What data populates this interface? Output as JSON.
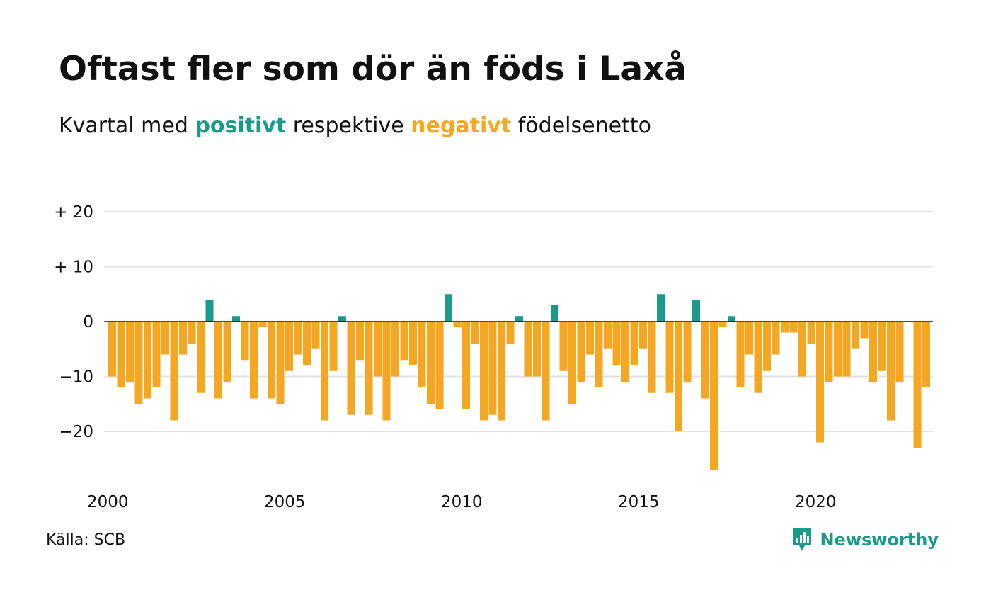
{
  "header": {
    "title": "Oftast fler som dör än föds i Laxå",
    "subtitle_prefix": "Kvartal med",
    "subtitle_positive": "positivt",
    "subtitle_middle": "respektive",
    "subtitle_negative": "negativt",
    "subtitle_suffix": "födelsenetto"
  },
  "footer": {
    "source": "Källa: SCB",
    "brand": "Newsworthy"
  },
  "icons": {
    "brand": "newsworthy-logo-icon"
  },
  "colors": {
    "positive": "#1a9a8a",
    "negative": "#f5a623",
    "grid": "#e2e2e2",
    "zero_line": "#111111"
  },
  "chart_data": {
    "type": "bar",
    "x_start_year": 2000,
    "periods_per_year": 4,
    "values": [
      -10,
      -12,
      -11,
      -15,
      -14,
      -12,
      -6,
      -18,
      -6,
      -4,
      -13,
      4,
      -14,
      -11,
      1,
      -7,
      -14,
      -1,
      -14,
      -15,
      -9,
      -6,
      -8,
      -5,
      -18,
      -9,
      1,
      -17,
      -7,
      -17,
      -10,
      -18,
      -10,
      -7,
      -8,
      -12,
      -15,
      -16,
      5,
      -1,
      -16,
      -4,
      -18,
      -17,
      -18,
      -4,
      1,
      -10,
      -10,
      -18,
      3,
      -9,
      -15,
      -11,
      -6,
      -12,
      -5,
      -8,
      -11,
      -8,
      -5,
      -13,
      5,
      -13,
      -20,
      -11,
      4,
      -14,
      -27,
      -1,
      1,
      -12,
      -6,
      -13,
      -9,
      -6,
      -2,
      -2,
      -10,
      -4,
      -22,
      -11,
      -10,
      -10,
      -5,
      -3,
      -11,
      -9,
      -18,
      -11,
      0,
      -23,
      -12
    ],
    "x_ticks": [
      "2000",
      "2005",
      "2010",
      "2015",
      "2020"
    ],
    "y_ticks": [
      "−20",
      "−10",
      "0",
      "+ 10",
      "+ 20"
    ],
    "y_tick_values": [
      -20,
      -10,
      0,
      10,
      20
    ],
    "ylim": [
      -28,
      20
    ],
    "grid": true,
    "legend": "in subtitle"
  }
}
